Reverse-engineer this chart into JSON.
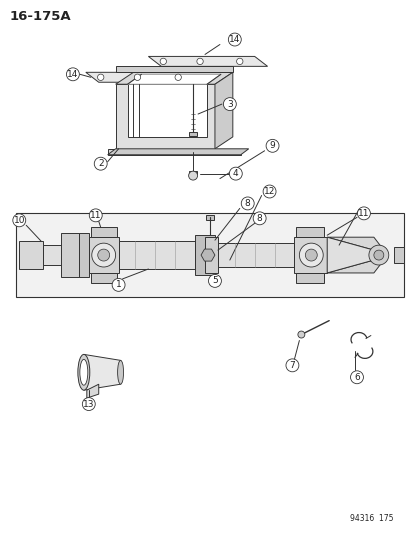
{
  "title": "16-175A",
  "footer": "94316  175",
  "bg_color": "#ffffff",
  "line_color": "#333333",
  "label_color": "#222222",
  "title_fontsize": 9.5,
  "label_fontsize": 6.5,
  "footer_fontsize": 5.5,
  "fig_w": 4.14,
  "fig_h": 5.33,
  "dpi": 100
}
